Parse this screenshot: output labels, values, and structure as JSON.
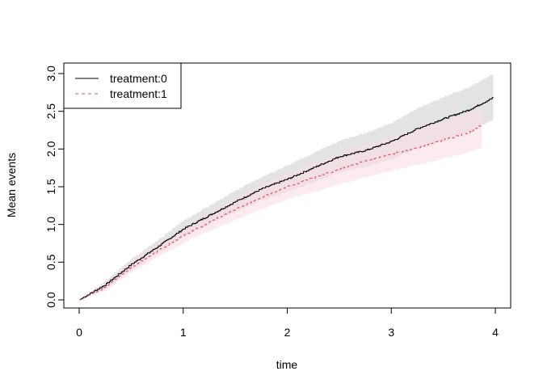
{
  "chart_data": {
    "type": "line",
    "title": "",
    "xlabel": "time",
    "ylabel": "Mean events",
    "xlim": [
      0,
      4
    ],
    "ylim": [
      0,
      3.0
    ],
    "x_ticks": [
      "0",
      "1",
      "2",
      "3",
      "4"
    ],
    "y_ticks": [
      "0.0",
      "0.5",
      "1.0",
      "1.5",
      "2.0",
      "2.5",
      "3.0"
    ],
    "grid": false,
    "legend_position": "top-left",
    "series": [
      {
        "name": "treatment:0",
        "color": "#000000",
        "band_color": "#d9d9d9",
        "line_style": "solid",
        "x": [
          0,
          0.25,
          0.5,
          0.75,
          1,
          1.25,
          1.5,
          1.75,
          2,
          2.25,
          2.5,
          2.75,
          3,
          3.25,
          3.5,
          3.75,
          3.98
        ],
        "y": [
          0,
          0.2,
          0.47,
          0.7,
          0.94,
          1.12,
          1.3,
          1.47,
          1.6,
          1.75,
          1.9,
          1.98,
          2.1,
          2.27,
          2.4,
          2.52,
          2.68
        ],
        "lower": [
          0,
          0.15,
          0.4,
          0.61,
          0.83,
          1.0,
          1.16,
          1.31,
          1.43,
          1.56,
          1.69,
          1.76,
          1.86,
          2.0,
          2.12,
          2.23,
          2.39
        ],
        "upper": [
          0,
          0.25,
          0.54,
          0.79,
          1.05,
          1.25,
          1.45,
          1.63,
          1.78,
          1.95,
          2.11,
          2.21,
          2.35,
          2.54,
          2.69,
          2.82,
          3.0
        ]
      },
      {
        "name": "treatment:1",
        "color": "#df536b",
        "band_color": "#fadde3",
        "line_style": "dashed",
        "x": [
          0,
          0.25,
          0.5,
          0.75,
          1,
          1.25,
          1.5,
          1.75,
          2,
          2.25,
          2.5,
          2.75,
          3,
          3.25,
          3.5,
          3.75,
          3.87
        ],
        "y": [
          0,
          0.17,
          0.43,
          0.65,
          0.85,
          1.03,
          1.2,
          1.36,
          1.5,
          1.62,
          1.73,
          1.84,
          1.93,
          2.02,
          2.12,
          2.22,
          2.32
        ],
        "lower": [
          0,
          0.12,
          0.36,
          0.56,
          0.75,
          0.91,
          1.06,
          1.2,
          1.33,
          1.43,
          1.53,
          1.63,
          1.71,
          1.79,
          1.87,
          1.96,
          2.02
        ],
        "upper": [
          0,
          0.22,
          0.5,
          0.74,
          0.96,
          1.15,
          1.34,
          1.52,
          1.68,
          1.81,
          1.94,
          2.06,
          2.16,
          2.26,
          2.37,
          2.48,
          2.56
        ]
      }
    ]
  }
}
